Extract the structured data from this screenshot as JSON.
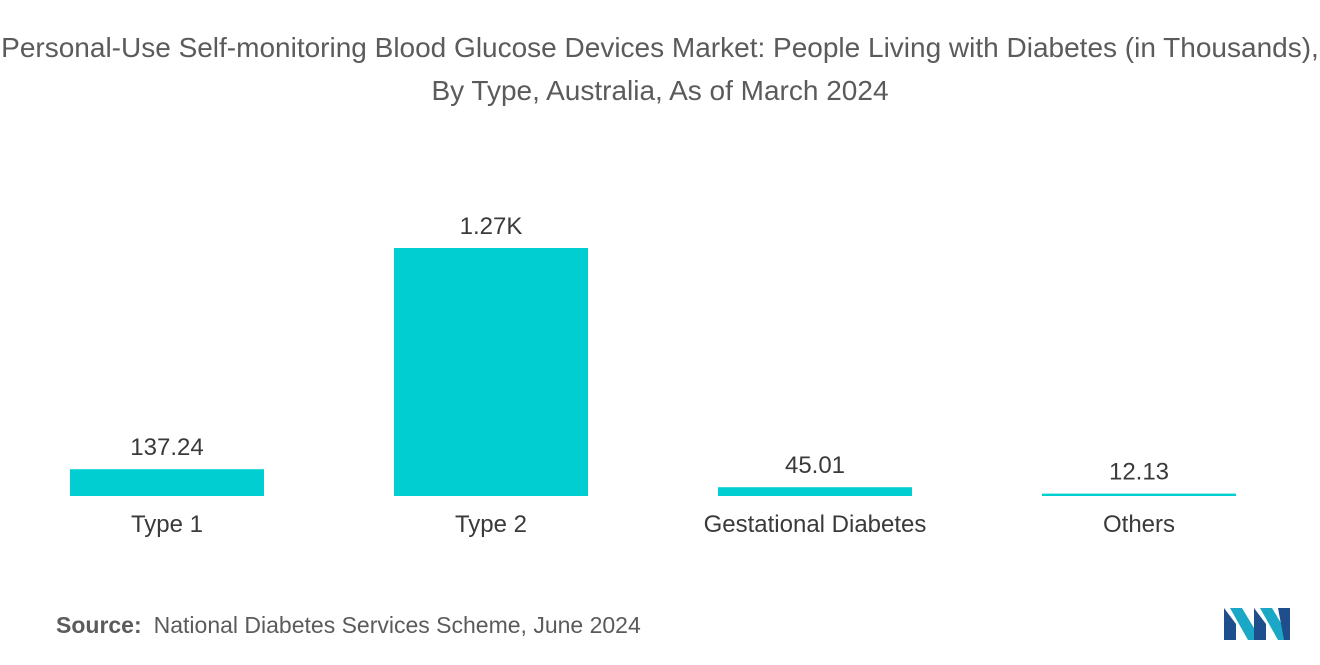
{
  "chart_data": {
    "type": "bar",
    "title": "Personal-Use Self-monitoring Blood Glucose Devices Market: People Living with Diabetes (in Thousands), By Type, Australia, As of March 2024",
    "categories": [
      "Type 1",
      "Type 2",
      "Gestational Diabetes",
      "Others"
    ],
    "values": [
      137.24,
      1270,
      45.01,
      12.13
    ],
    "value_labels": [
      "137.24",
      "1.27K",
      "45.01",
      "12.13"
    ],
    "xlabel": "",
    "ylabel": "",
    "ylim": [
      0,
      1270
    ],
    "grid": false,
    "bar_color": "#00CED1"
  },
  "source": {
    "key": "Source:",
    "text": "National Diabetes Services Scheme, June 2024"
  },
  "logo": {
    "icon": "mordor-intelligence-logo-icon",
    "colors": [
      "#1f4e8c",
      "#1ba7c6"
    ]
  }
}
